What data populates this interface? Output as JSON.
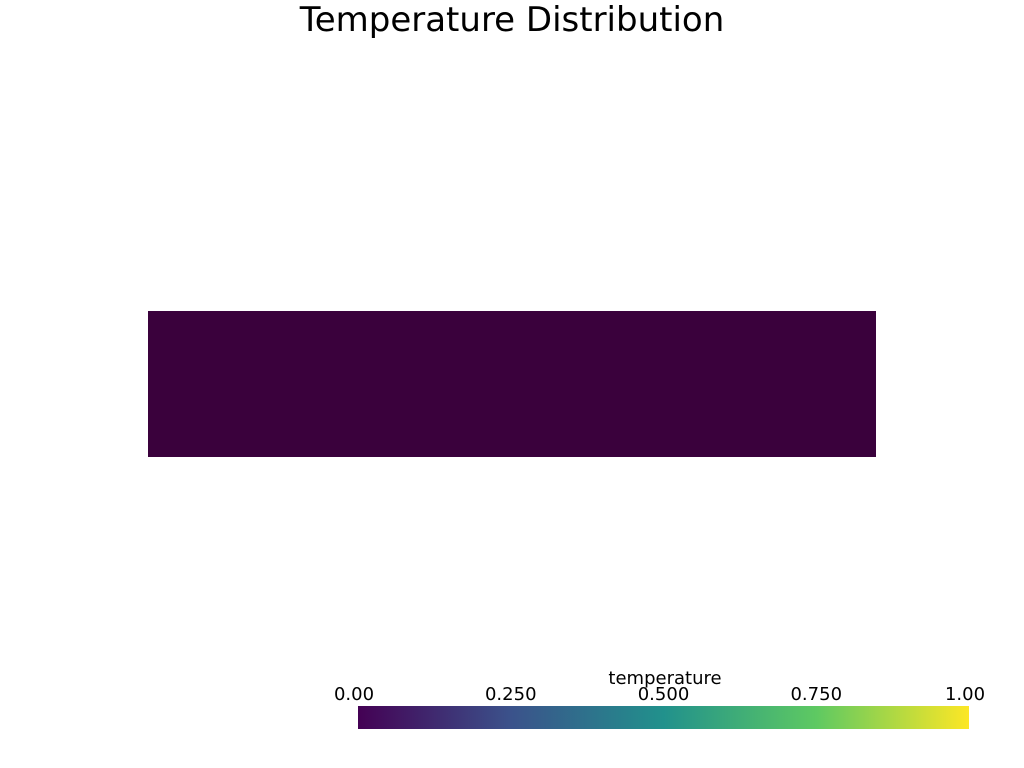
{
  "chart_data": {
    "type": "heatmap",
    "title": "Temperature Distribution",
    "scalar_name": "temperature",
    "color_range": [
      0.0,
      1.0
    ],
    "colormap": "viridis",
    "colormap_stops": [
      "#440154",
      "#3b528b",
      "#21918c",
      "#5ec962",
      "#fde725"
    ],
    "field_value": 0.0,
    "field_color": "#3a013c",
    "colorbar_ticks": [
      {
        "value": 0.0,
        "label": "0.00"
      },
      {
        "value": 0.25,
        "label": "0.250"
      },
      {
        "value": 0.5,
        "label": "0.500"
      },
      {
        "value": 0.75,
        "label": "0.750"
      },
      {
        "value": 1.0,
        "label": "1.00"
      }
    ]
  }
}
